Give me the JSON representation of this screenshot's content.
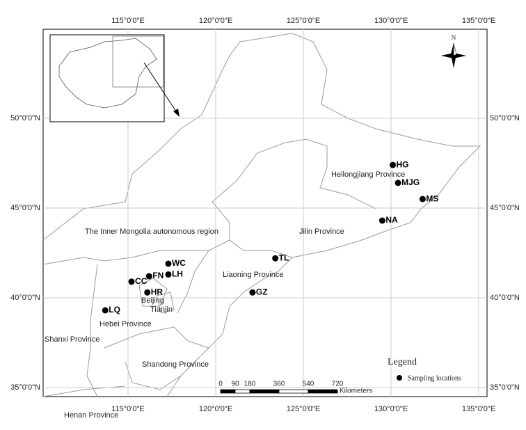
{
  "map": {
    "lon_ticks": [
      {
        "value": 115,
        "label": "115°0'0\"E"
      },
      {
        "value": 120,
        "label": "120°0'0\"E"
      },
      {
        "value": 125,
        "label": "125°0'0\"E"
      },
      {
        "value": 130,
        "label": "130°0'0\"E"
      },
      {
        "value": 135,
        "label": "135°0'0\"E"
      }
    ],
    "lat_ticks": [
      {
        "value": 35,
        "label": "35°0'0\"N"
      },
      {
        "value": 40,
        "label": "40°0'0\"N"
      },
      {
        "value": 45,
        "label": "45°0'0\"N"
      },
      {
        "value": 50,
        "label": "50°0'0\"N"
      }
    ],
    "sites": [
      {
        "label": "HG",
        "lon": 130.1,
        "lat": 47.4
      },
      {
        "label": "MJG",
        "lon": 130.4,
        "lat": 46.4
      },
      {
        "label": "MS",
        "lon": 131.8,
        "lat": 45.5
      },
      {
        "label": "NA",
        "lon": 129.5,
        "lat": 44.3
      },
      {
        "label": "TL",
        "lon": 123.4,
        "lat": 42.2
      },
      {
        "label": "GZ",
        "lon": 122.1,
        "lat": 40.3
      },
      {
        "label": "WC",
        "lon": 117.3,
        "lat": 41.9
      },
      {
        "label": "LH",
        "lon": 117.3,
        "lat": 41.3
      },
      {
        "label": "FN",
        "lon": 116.2,
        "lat": 41.2
      },
      {
        "label": "CC",
        "lon": 115.2,
        "lat": 40.9
      },
      {
        "label": "HR",
        "lon": 116.1,
        "lat": 40.3
      },
      {
        "label": "LQ",
        "lon": 113.7,
        "lat": 39.3
      }
    ],
    "regions": [
      "Heilongjiang Province",
      "Jilin Province",
      "Liaoning Province",
      "The Inner Mongolia autonomous region",
      "Beijing",
      "Tianjin",
      "Hebei Province",
      "Shanxi Province",
      "Shandong Province",
      "Henan Province"
    ],
    "scale_bar": {
      "ticks": [
        0,
        90,
        180,
        360,
        540,
        720
      ],
      "unit": "Kilometers"
    },
    "legend": {
      "title": "Legend",
      "item": "Sampling locations"
    },
    "north": "N"
  }
}
